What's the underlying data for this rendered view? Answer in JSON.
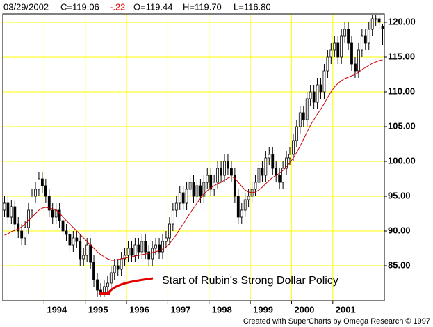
{
  "chart_data": {
    "type": "candlestick",
    "header": {
      "date": "03/29/2002",
      "close": "C=119.06",
      "change": "-.22",
      "open": "O=119.44",
      "high": "H=119.70",
      "low": "L=116.80"
    },
    "annotation": "Start of Rubin's Strong Dollar Policy",
    "footer": "Created with SuperCharts by Omega Research © 1997",
    "x": [
      1993.042,
      1993.125,
      1993.208,
      1993.292,
      1993.375,
      1993.458,
      1993.542,
      1993.625,
      1993.708,
      1993.792,
      1993.875,
      1993.958,
      1994.042,
      1994.125,
      1994.208,
      1994.292,
      1994.375,
      1994.458,
      1994.542,
      1994.625,
      1994.708,
      1994.792,
      1994.875,
      1994.958,
      1995.042,
      1995.125,
      1995.208,
      1995.292,
      1995.375,
      1995.458,
      1995.542,
      1995.625,
      1995.708,
      1995.792,
      1995.875,
      1995.958,
      1996.042,
      1996.125,
      1996.208,
      1996.292,
      1996.375,
      1996.458,
      1996.542,
      1996.625,
      1996.708,
      1996.792,
      1996.875,
      1996.958,
      1997.042,
      1997.125,
      1997.208,
      1997.292,
      1997.375,
      1997.458,
      1997.542,
      1997.625,
      1997.708,
      1997.792,
      1997.875,
      1997.958,
      1998.042,
      1998.125,
      1998.208,
      1998.292,
      1998.375,
      1998.458,
      1998.542,
      1998.625,
      1998.708,
      1998.792,
      1998.875,
      1998.958,
      1999.042,
      1999.125,
      1999.208,
      1999.292,
      1999.375,
      1999.458,
      1999.542,
      1999.625,
      1999.708,
      1999.792,
      1999.875,
      1999.958,
      2000.042,
      2000.125,
      2000.208,
      2000.292,
      2000.375,
      2000.458,
      2000.542,
      2000.625,
      2000.708,
      2000.792,
      2000.875,
      2000.958,
      2001.042,
      2001.125,
      2001.208,
      2001.292,
      2001.375,
      2001.458,
      2001.542,
      2001.625,
      2001.708,
      2001.792,
      2001.875,
      2001.958,
      2002.042,
      2002.125,
      2002.208
    ],
    "open": [
      93,
      94,
      92,
      93.5,
      91,
      90,
      89,
      90.5,
      93,
      95,
      96,
      97.5,
      96.5,
      95,
      93,
      92,
      93,
      91.5,
      90,
      89.5,
      88,
      89,
      88.5,
      86,
      86.5,
      88,
      85.5,
      83,
      81.5,
      81,
      82,
      82.5,
      84,
      85,
      84.5,
      86,
      86.5,
      87.5,
      86.5,
      88,
      87,
      88.5,
      87,
      86,
      87.5,
      88,
      87,
      88.5,
      89,
      91,
      93,
      94,
      95.5,
      94,
      96,
      97,
      95,
      96.5,
      95,
      97,
      98,
      96,
      97,
      99,
      98,
      100,
      99,
      98,
      95,
      92,
      93,
      94.5,
      95,
      96,
      97,
      99,
      98,
      100.5,
      101,
      99,
      98,
      97,
      99,
      100.5,
      101,
      103,
      105,
      107,
      106,
      109,
      110,
      108.5,
      111,
      110,
      113,
      115,
      116,
      117,
      115,
      118,
      119,
      117,
      114,
      113,
      116,
      118,
      117,
      119,
      120.5,
      120.5,
      119.44
    ],
    "high": [
      95,
      95,
      94.5,
      94.5,
      92,
      91,
      91.5,
      94,
      96,
      97,
      98.5,
      98.5,
      97.5,
      96,
      94,
      94,
      94,
      92.5,
      91,
      90.5,
      90,
      90,
      89.5,
      87.5,
      89,
      89,
      86.5,
      84,
      82.5,
      83,
      83.5,
      85,
      86,
      86,
      87,
      87.5,
      88.5,
      88.5,
      89,
      89,
      89.5,
      89.5,
      88,
      88.5,
      89,
      89,
      89.5,
      90,
      92,
      94,
      95,
      96.5,
      96.5,
      97,
      98,
      98,
      97.5,
      97.5,
      98,
      99,
      99,
      98,
      100,
      100,
      101,
      101,
      100,
      99,
      96,
      94,
      95.5,
      96,
      97,
      98,
      100,
      100,
      101.5,
      102,
      102,
      100,
      99,
      100,
      101.5,
      102,
      104,
      106,
      108,
      108,
      110,
      111,
      111,
      112,
      112,
      114,
      116,
      117,
      118,
      118,
      119,
      120,
      120,
      118,
      115,
      117,
      119,
      119,
      120,
      121,
      121,
      121,
      119.7
    ],
    "low": [
      92,
      91,
      91,
      90,
      89,
      88,
      88,
      89.5,
      92,
      94,
      95,
      95.5,
      94,
      92,
      91,
      91,
      90.5,
      89,
      88.5,
      87,
      87,
      87.5,
      85,
      85,
      85.5,
      84.5,
      82,
      80.5,
      80.5,
      80.5,
      81,
      81.5,
      83,
      83.5,
      83.5,
      85,
      85.5,
      85.5,
      85.5,
      86,
      86,
      86,
      85,
      85,
      86.5,
      86,
      86,
      87.5,
      88,
      90,
      92,
      93,
      93,
      93,
      95,
      94,
      94,
      94,
      94,
      96,
      95,
      95,
      96,
      97,
      97,
      98,
      97,
      94,
      91,
      91,
      92,
      93.5,
      94,
      95,
      96,
      97,
      97,
      99.5,
      98,
      97,
      96,
      96,
      98,
      99.5,
      100,
      102,
      104,
      105,
      105,
      108,
      107.5,
      107.5,
      109,
      109,
      112,
      114,
      115,
      114,
      114,
      117,
      116,
      113,
      112,
      112,
      115,
      116,
      116,
      118,
      119.5,
      119,
      116.8
    ],
    "close": [
      94,
      92,
      93.5,
      91,
      90,
      89,
      90.5,
      93,
      95,
      96,
      97.5,
      96.5,
      95,
      93,
      92,
      93,
      91.5,
      90,
      89.5,
      88,
      89,
      88.5,
      86,
      86.5,
      88,
      85.5,
      83,
      81.5,
      81,
      82,
      82.5,
      84,
      85,
      84.5,
      86,
      86.5,
      87.5,
      86.5,
      88,
      87,
      88.5,
      87,
      86,
      87.5,
      88,
      87,
      88.5,
      89,
      91,
      93,
      94,
      95.5,
      94,
      96,
      97,
      95,
      96.5,
      95,
      97,
      98,
      96,
      97,
      99,
      98,
      100,
      99,
      98,
      95,
      92,
      93,
      94.5,
      95,
      96,
      97,
      99,
      98,
      100.5,
      101,
      99,
      98,
      97,
      99,
      100.5,
      101,
      103,
      105,
      107,
      106,
      109,
      110,
      108.5,
      111,
      110,
      113,
      115,
      116,
      117,
      115,
      118,
      119,
      117,
      114,
      113,
      116,
      118,
      117,
      119,
      120.5,
      120.5,
      120,
      119.06
    ],
    "moving_average": {
      "color": "#cc0000",
      "values": [
        89.4,
        89.6,
        89.9,
        90.1,
        90.3,
        90.6,
        91,
        91.5,
        92,
        92.5,
        93,
        93.3,
        93.4,
        93.3,
        93.2,
        93,
        92.6,
        92,
        91.5,
        91,
        90.5,
        90,
        89.5,
        89,
        88.5,
        88,
        87.5,
        87,
        86.6,
        86.3,
        86,
        85.8,
        85.8,
        85.9,
        86,
        86.1,
        86.2,
        86.3,
        86.4,
        86.5,
        86.6,
        86.7,
        86.8,
        86.9,
        87,
        87.2,
        87.4,
        87.7,
        88.2,
        88.8,
        89.5,
        90.3,
        91,
        91.8,
        92.6,
        93.3,
        94,
        94.7,
        95.3,
        95.8,
        96.2,
        96.5,
        96.8,
        97,
        97.3,
        97.6,
        97.8,
        97.6,
        97,
        96.4,
        95.9,
        95.6,
        95.5,
        95.6,
        95.9,
        96.3,
        96.8,
        97.3,
        97.7,
        98,
        98.3,
        98.7,
        99.2,
        99.8,
        100.5,
        101.3,
        102.2,
        103.2,
        104.2,
        105.2,
        106,
        106.8,
        107.5,
        108.3,
        109.2,
        110,
        110.7,
        111.2,
        111.6,
        111.9,
        112.1,
        112.3,
        112.5,
        112.8,
        113.2,
        113.5,
        113.8,
        114.1,
        114.3,
        114.5,
        114.6
      ]
    },
    "up_color": "#ffffff",
    "down_color": "#000000",
    "xlim": [
      1993,
      2002.25
    ],
    "ylim": [
      80,
      121.2
    ],
    "xticks": [
      1994,
      1995,
      1996,
      1997,
      1998,
      1999,
      2000,
      2001
    ],
    "yticks": [
      {
        "value": 85,
        "label": "85.00"
      },
      {
        "value": 90,
        "label": "90.00"
      },
      {
        "value": 95,
        "label": "95.00"
      },
      {
        "value": 100,
        "label": "100.00"
      },
      {
        "value": 105,
        "label": "105.00"
      },
      {
        "value": 110,
        "label": "110.00"
      },
      {
        "value": 115,
        "label": "115.00"
      },
      {
        "value": 120,
        "label": "120.00"
      }
    ],
    "grid": true,
    "grid_color": "#ffff00"
  }
}
